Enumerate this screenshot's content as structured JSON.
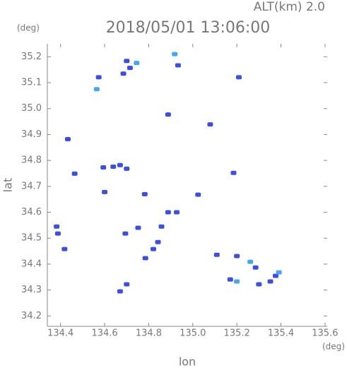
{
  "chart_data": {
    "type": "scatter",
    "title": "2018/05/01 13:06:00",
    "subtitle": "ALT(km) 2.0",
    "y_unit": "(deg)",
    "x_unit": "(deg)",
    "x_label": "lon",
    "y_label": "lat",
    "xlim": [
      134.34,
      135.61
    ],
    "ylim": [
      34.16,
      35.25
    ],
    "xticks": [
      134.4,
      134.6,
      134.8,
      {
        "value": 135,
        "label": "135.0"
      },
      135.2,
      135.4,
      135.6
    ],
    "yticks": [
      34.2,
      34.3,
      34.4,
      34.5,
      34.6,
      34.7,
      34.8,
      34.9,
      {
        "value": 35,
        "label": "35.0"
      },
      35.1,
      35.2
    ],
    "series": [
      {
        "color": "#3d4fe0",
        "x": [
          134.685,
          134.715,
          134.7,
          134.933,
          134.573,
          135.209,
          134.888,
          135.079,
          134.433,
          134.464,
          134.594,
          134.639,
          134.67,
          134.7,
          135.185,
          134.6,
          134.782,
          135.024,
          134.888,
          134.927,
          134.382,
          134.388,
          134.418,
          134.694,
          134.752,
          134.858,
          134.842,
          134.821,
          134.785,
          135.109,
          135.2,
          135.285,
          135.17,
          135.376,
          135.352,
          135.3,
          134.7,
          134.67
        ],
        "values": [
          35.135,
          35.157,
          35.184,
          35.167,
          35.121,
          35.121,
          34.977,
          34.939,
          34.882,
          34.749,
          34.773,
          34.776,
          34.782,
          34.768,
          34.752,
          34.678,
          34.67,
          34.668,
          34.6,
          34.6,
          34.545,
          34.518,
          34.458,
          34.518,
          34.54,
          34.545,
          34.485,
          34.458,
          34.423,
          34.436,
          34.431,
          34.387,
          34.341,
          34.355,
          34.333,
          34.322,
          34.322,
          34.295
        ]
      },
      {
        "color": "#45a6f2",
        "x": [
          134.745,
          134.918,
          134.564,
          135.391,
          135.261,
          135.2
        ],
        "values": [
          35.176,
          35.21,
          35.075,
          34.368,
          34.409,
          34.333
        ]
      }
    ]
  }
}
